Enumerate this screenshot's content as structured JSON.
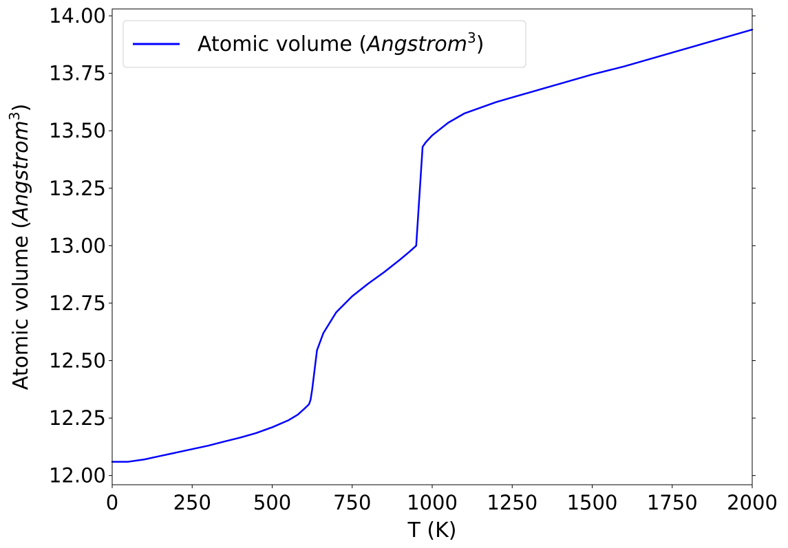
{
  "chart_data": {
    "type": "line",
    "title": "",
    "xlabel": "T (K)",
    "ylabel": {
      "prefix": "Atomic volume (",
      "italic": "Angstrom",
      "sup": "3",
      "suffix": ")"
    },
    "xlim": [
      0,
      2000
    ],
    "ylim": [
      11.96,
      14.03
    ],
    "xticks": [
      0,
      250,
      500,
      750,
      1000,
      1250,
      1500,
      1750,
      2000
    ],
    "yticks": [
      12.0,
      12.25,
      12.5,
      12.75,
      13.0,
      13.25,
      13.5,
      13.75,
      14.0
    ],
    "xtick_labels": [
      "0",
      "250",
      "500",
      "750",
      "1000",
      "1250",
      "1500",
      "1750",
      "2000"
    ],
    "ytick_labels": [
      "12.00",
      "12.25",
      "12.50",
      "12.75",
      "13.00",
      "13.25",
      "13.50",
      "13.75",
      "14.00"
    ],
    "grid": false,
    "legend_position": "top-left",
    "series": [
      {
        "name": {
          "prefix": "Atomic volume (",
          "italic": "Angstrom",
          "sup": "3",
          "suffix": ")"
        },
        "color": "#0000ff",
        "x": [
          0,
          25,
          50,
          75,
          100,
          150,
          200,
          250,
          300,
          350,
          400,
          450,
          500,
          550,
          580,
          600,
          615,
          620,
          625,
          640,
          660,
          700,
          750,
          800,
          850,
          900,
          930,
          950,
          970,
          980,
          1000,
          1050,
          1100,
          1200,
          1250,
          1300,
          1400,
          1500,
          1600,
          1700,
          1800,
          1900,
          2000
        ],
        "y": [
          12.06,
          12.06,
          12.06,
          12.065,
          12.07,
          12.085,
          12.1,
          12.115,
          12.13,
          12.148,
          12.165,
          12.185,
          12.21,
          12.24,
          12.265,
          12.29,
          12.31,
          12.33,
          12.375,
          12.545,
          12.62,
          12.71,
          12.78,
          12.835,
          12.885,
          12.94,
          12.975,
          13.0,
          13.43,
          13.45,
          13.48,
          13.535,
          13.575,
          13.625,
          13.645,
          13.665,
          13.705,
          13.745,
          13.78,
          13.82,
          13.86,
          13.9,
          13.94
        ]
      }
    ]
  }
}
